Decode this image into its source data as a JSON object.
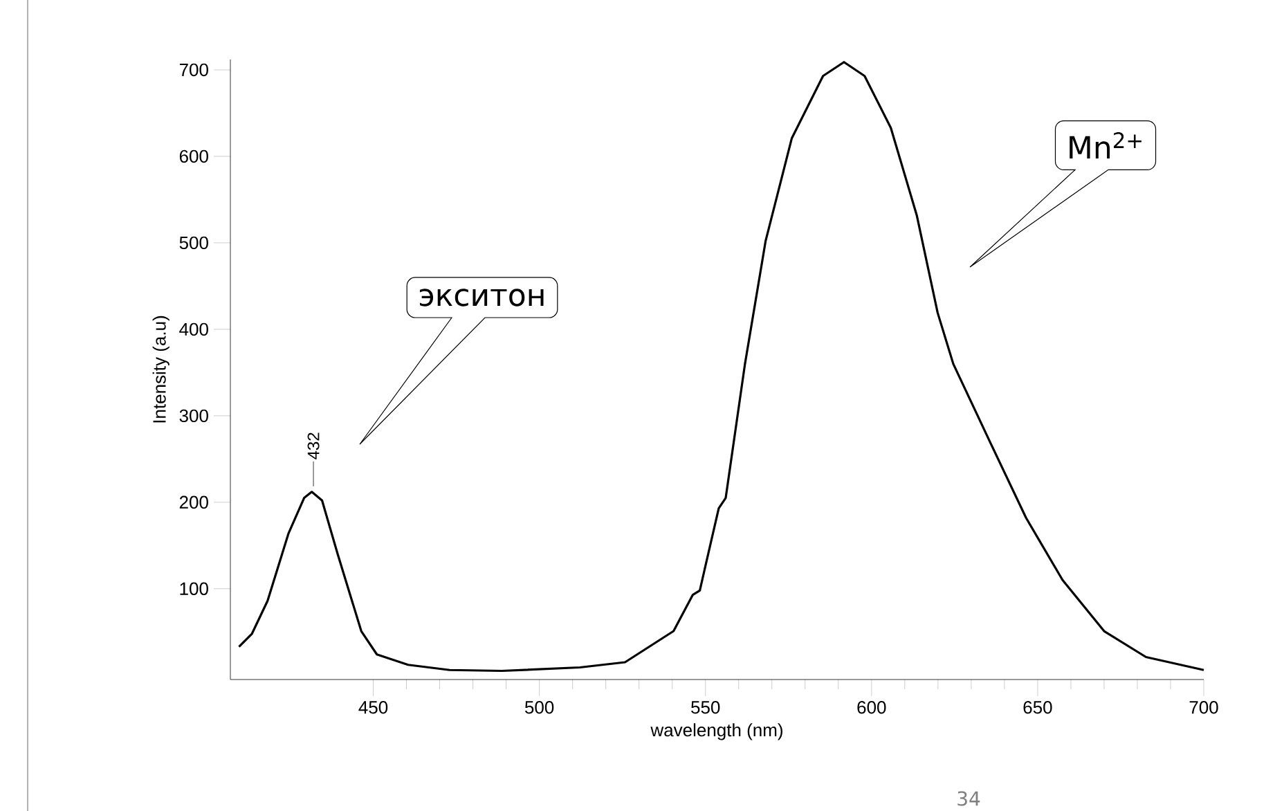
{
  "chart_data": {
    "type": "line",
    "xlabel": "wavelength  (nm)",
    "ylabel": "Intensity (a.u)",
    "color": "#000000",
    "x": [
      409.6,
      413.5,
      418.2,
      424.5,
      429.2,
      431.5,
      434.6,
      439.3,
      446.4,
      451.1,
      460.5,
      473,
      488.7,
      512.2,
      525.8,
      540.4,
      546.2,
      548.3,
      554,
      556.1,
      561.9,
      567.1,
      568.1,
      576,
      585.4,
      591.7,
      597.9,
      605.8,
      613.6,
      619.9,
      624.6,
      635.5,
      646.5,
      657.5,
      670,
      682.6,
      700
    ],
    "values": [
      33,
      48,
      86,
      164,
      205,
      212,
      202,
      140,
      51,
      24,
      12,
      6,
      5,
      9,
      15,
      51,
      93,
      98,
      193,
      205,
      360,
      479,
      502,
      621,
      693,
      709,
      693,
      633,
      532,
      419,
      360,
      271,
      182,
      110,
      51,
      21,
      6
    ],
    "xlim": [
      407,
      700
    ],
    "ylim": [
      -5,
      712
    ],
    "xticks": [
      450,
      500,
      550,
      600,
      650,
      700
    ],
    "yticks": [
      100,
      200,
      300,
      400,
      500,
      600,
      700
    ],
    "annotations": [
      {
        "text": "432",
        "x": 432,
        "y": 212
      },
      "экситон",
      "Mn$^{2+}$",
      "34"
    ]
  }
}
